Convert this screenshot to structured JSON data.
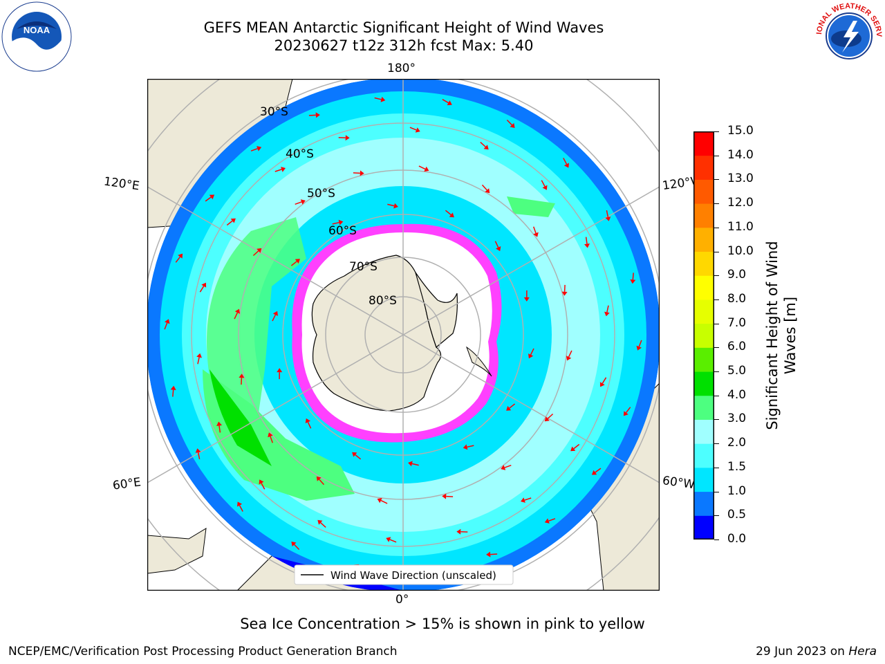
{
  "header": {
    "title_line1": "GEFS MEAN Antarctic Significant Height of Wind Waves",
    "title_line2": "20230627 t12z 312h fcst   Max: 5.40"
  },
  "logos": {
    "noaa": {
      "text": "NOAA",
      "icon": "noaa-logo-icon"
    },
    "nws": {
      "text": "NATIONAL WEATHER SERVICE",
      "icon": "nws-logo-icon"
    }
  },
  "map": {
    "projection": "south-polar-stereographic",
    "meridian_labels": {
      "top": "180°",
      "bottom": "0°",
      "left_upper": "120°E",
      "left_lower": "60°E",
      "right_upper": "120°W",
      "right_lower": "60°W"
    },
    "parallel_labels": [
      "30°S",
      "40°S",
      "50°S",
      "60°S",
      "70°S",
      "80°S"
    ],
    "legend_text": "Wind Wave Direction (unscaled)",
    "colors": {
      "land": "#ede9d8",
      "ice": "#ffffff",
      "arrows": "#ff0000",
      "grid": "#b0b0b0"
    }
  },
  "colorbar": {
    "label": "Significant Height of Wind Waves [m]",
    "ticks": [
      "0.0",
      "0.5",
      "1.0",
      "1.5",
      "2.0",
      "3.0",
      "4.0",
      "5.0",
      "6.0",
      "7.0",
      "8.0",
      "9.0",
      "10.0",
      "11.0",
      "12.0",
      "13.0",
      "14.0",
      "15.0"
    ],
    "colors": [
      "#0000ff",
      "#0a78ff",
      "#00e6ff",
      "#4dffff",
      "#a0ffff",
      "#4dff80",
      "#00e000",
      "#5aee00",
      "#c8ff00",
      "#e6ff00",
      "#ffff00",
      "#ffd800",
      "#ffb000",
      "#ff8000",
      "#ff5a00",
      "#ff3000",
      "#ff0000"
    ]
  },
  "footer": {
    "ice_note": "Sea Ice Concentration > 15% is shown in pink to yellow",
    "credit": "NCEP/EMC/Verification Post Processing Product Generation Branch",
    "date_text": "29 Jun 2023 on ",
    "machine": "Hera"
  }
}
